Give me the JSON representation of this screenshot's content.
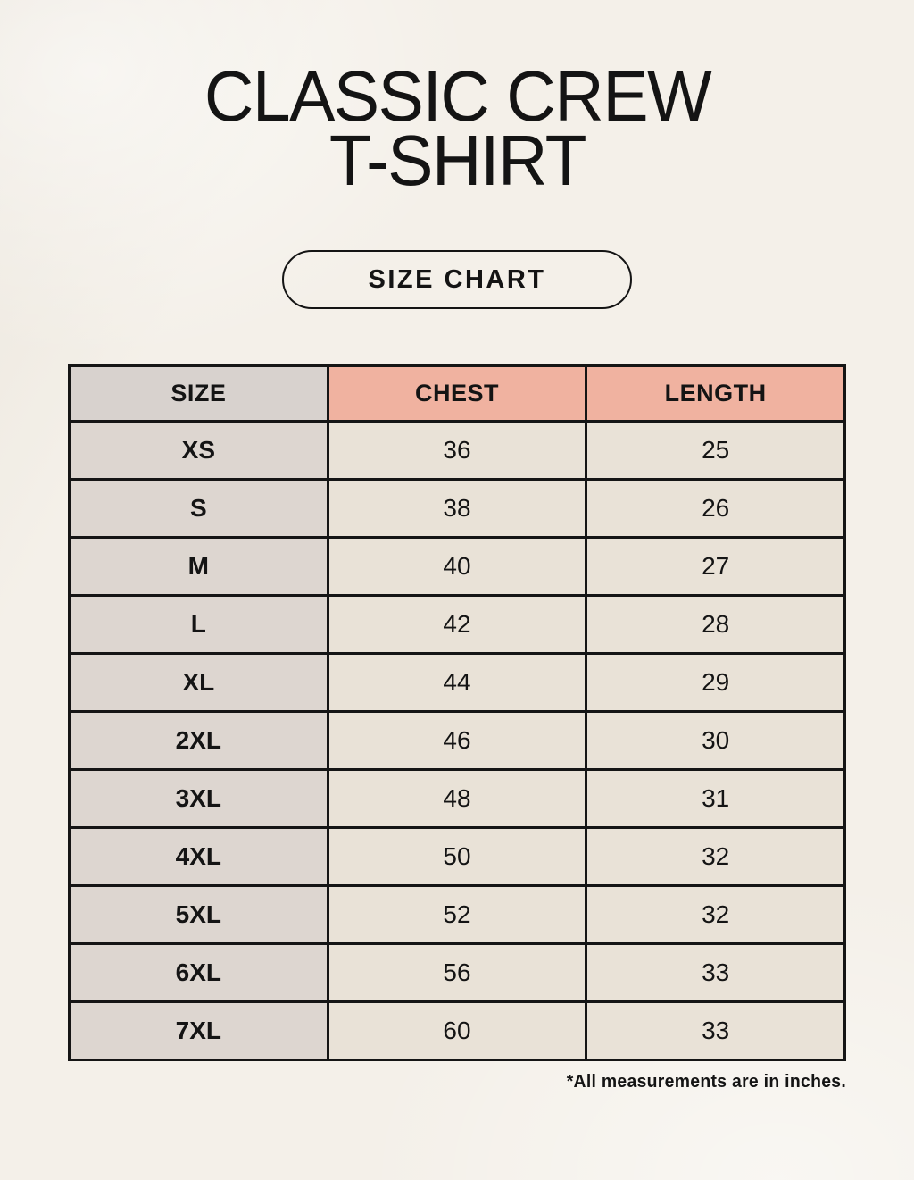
{
  "header": {
    "title_line1": "CLASSIC CREW",
    "title_line2": "T-SHIRT",
    "button_label": "SIZE CHART"
  },
  "chart_data": {
    "type": "table",
    "title": "CLASSIC CREW T-SHIRT",
    "subtitle": "SIZE CHART",
    "columns": [
      "SIZE",
      "CHEST",
      "LENGTH"
    ],
    "rows": [
      [
        "XS",
        "36",
        "25"
      ],
      [
        "S",
        "38",
        "26"
      ],
      [
        "M",
        "40",
        "27"
      ],
      [
        "L",
        "42",
        "28"
      ],
      [
        "XL",
        "44",
        "29"
      ],
      [
        "2XL",
        "46",
        "30"
      ],
      [
        "3XL",
        "48",
        "31"
      ],
      [
        "4XL",
        "50",
        "32"
      ],
      [
        "5XL",
        "52",
        "32"
      ],
      [
        "6XL",
        "56",
        "33"
      ],
      [
        "7XL",
        "60",
        "33"
      ]
    ],
    "units": "inches"
  },
  "footer": {
    "note": "*All measurements are in inches."
  },
  "colors": {
    "background": "#f4f0e9",
    "text": "#141414",
    "header_size_bg": "#d8d2ce",
    "header_accent_bg": "#f0b2a0",
    "cell_size_bg": "#ddd6d0",
    "cell_value_bg": "#e9e2d7",
    "table_border": "#151515"
  }
}
